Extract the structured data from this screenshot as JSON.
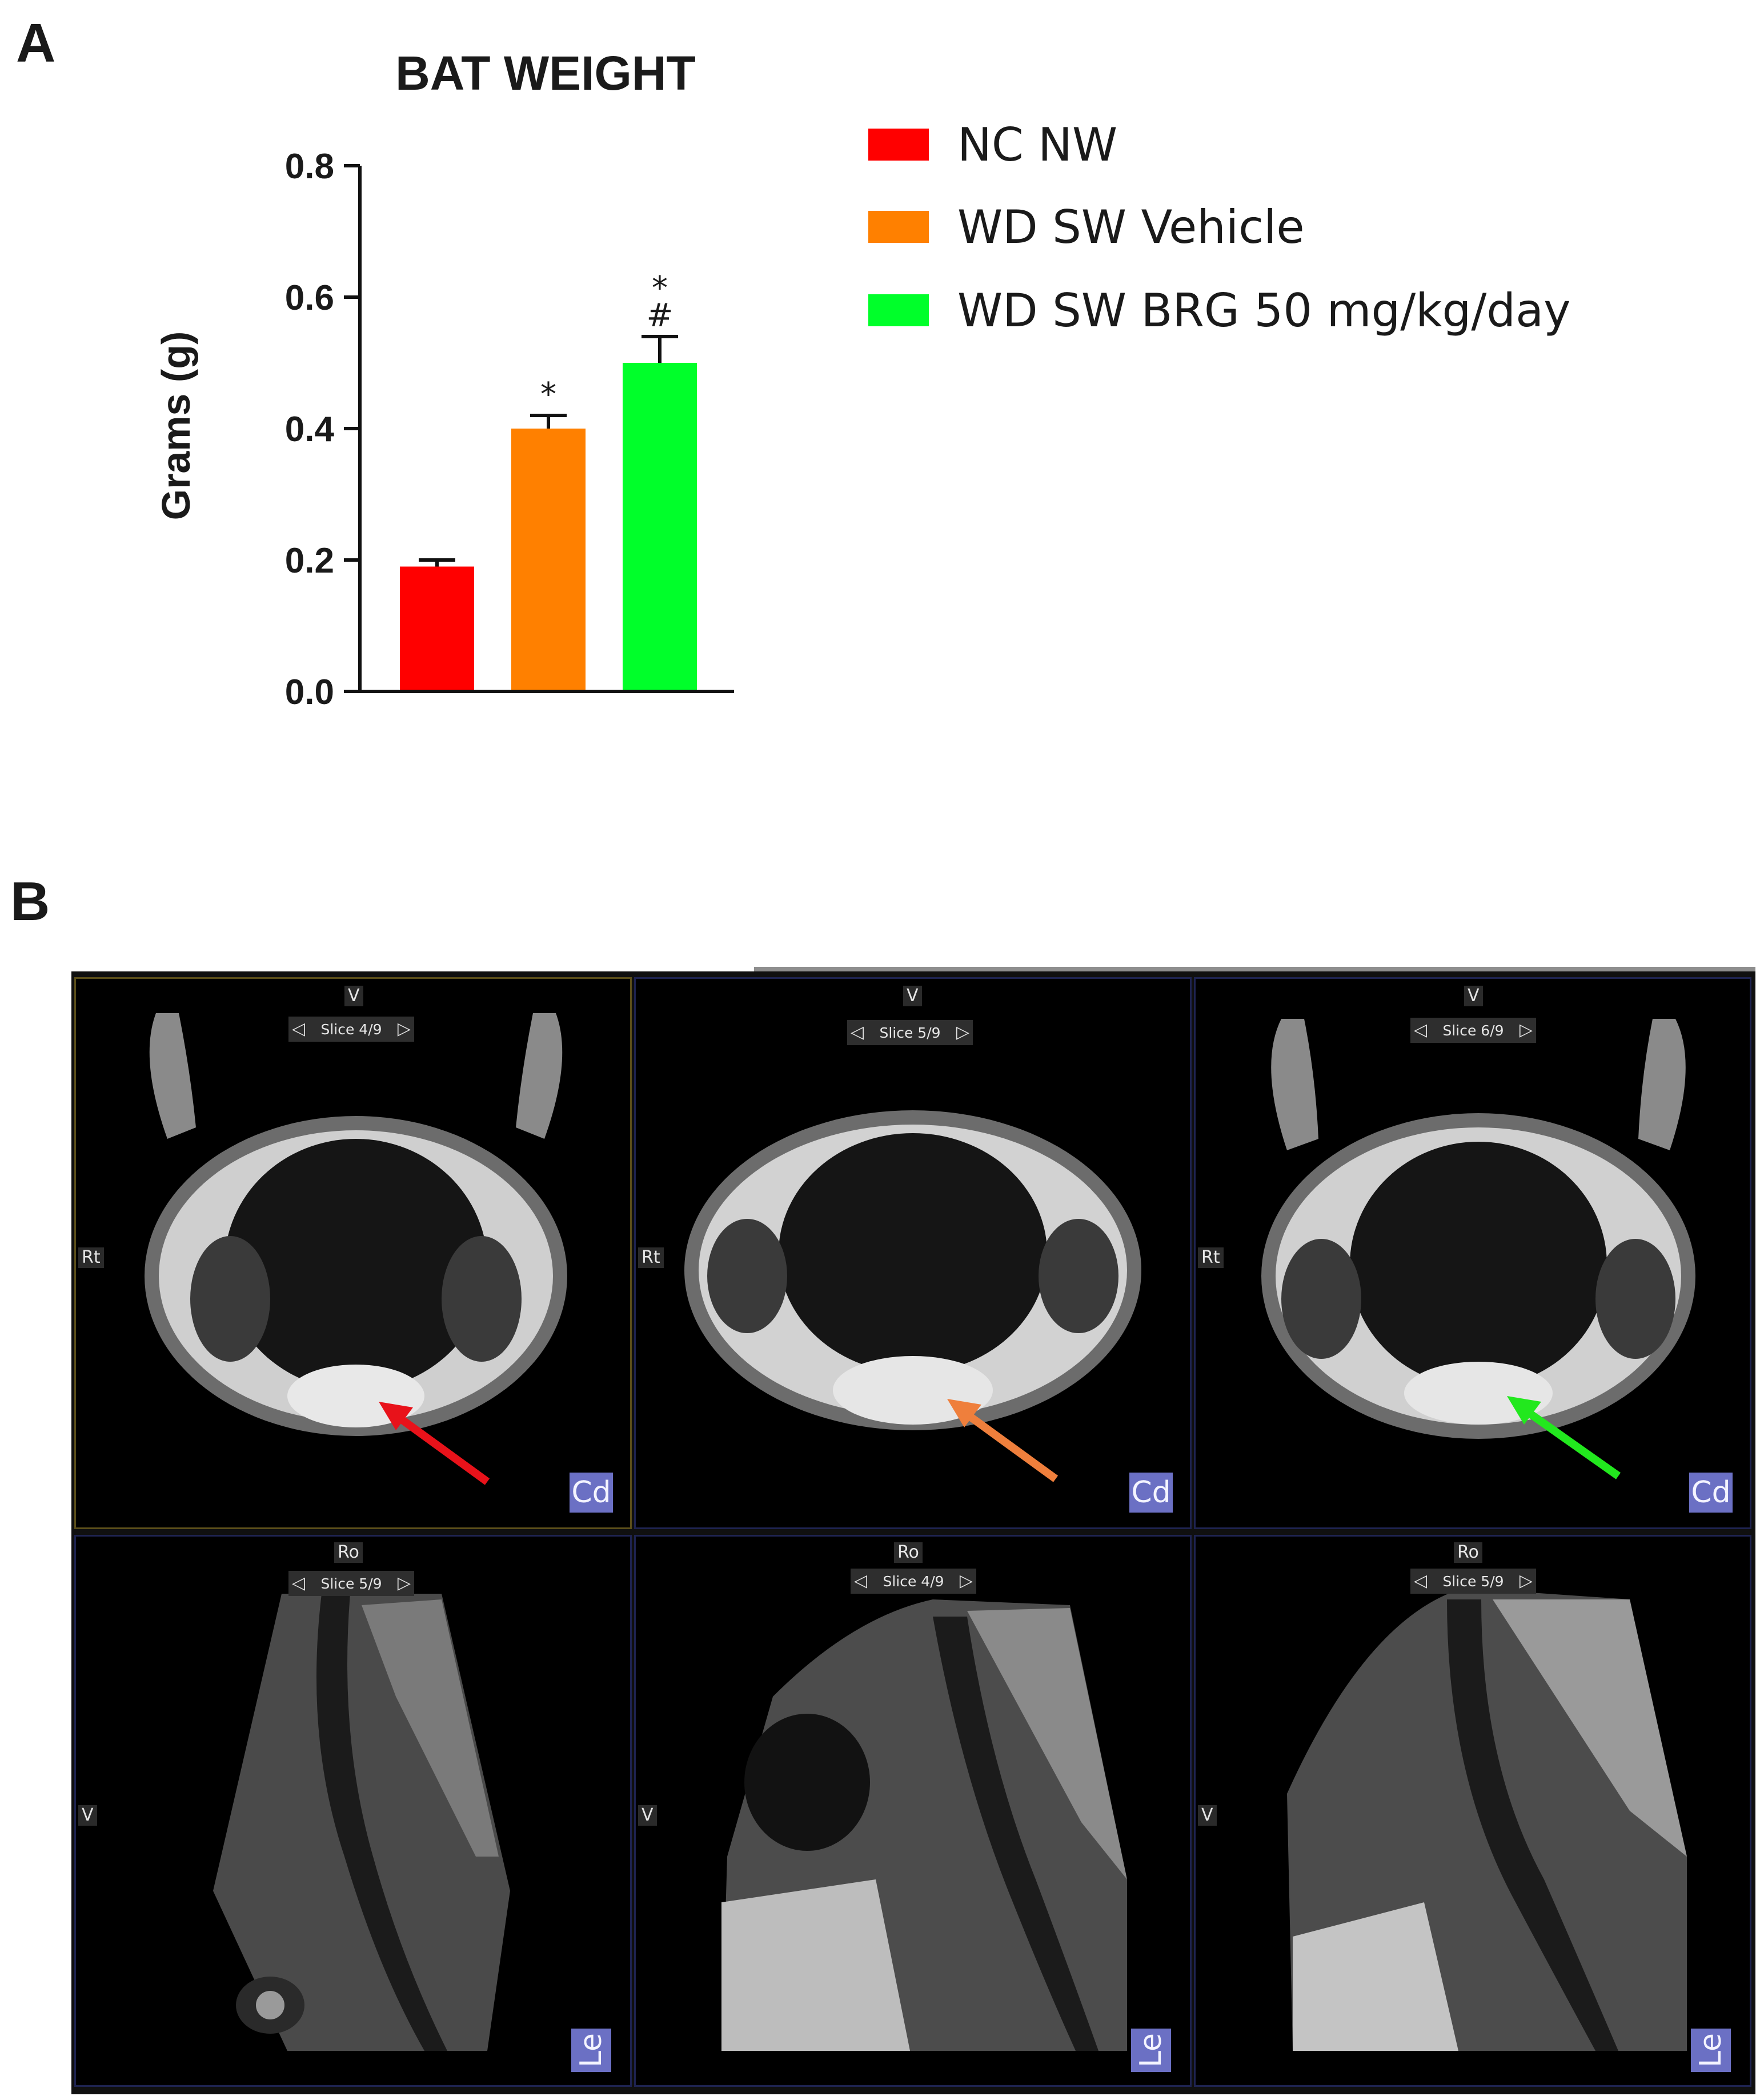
{
  "panel_labels": {
    "a": "A",
    "b": "B"
  },
  "chart_data": {
    "type": "bar",
    "title": "BAT WEIGHT",
    "ylabel": "Grams (g)",
    "xlabel": "",
    "ylim": [
      0,
      0.8
    ],
    "yticks": [
      0.0,
      0.2,
      0.4,
      0.6,
      0.8
    ],
    "ytick_labels": [
      "0.0",
      "0.2",
      "0.4",
      "0.6",
      "0.8"
    ],
    "categories": [
      "NC NW",
      "WD SW Vehicle",
      "WD SW BRG 50 mg/kg/day"
    ],
    "values": [
      0.19,
      0.4,
      0.5
    ],
    "errors": [
      0.01,
      0.02,
      0.04
    ],
    "colors": [
      "#ff0000",
      "#ff8000",
      "#00ff2a"
    ],
    "annotations": [
      null,
      "*",
      "*\n#"
    ],
    "legend": {
      "position": "right",
      "entries": [
        "NC NW",
        "WD SW Vehicle",
        "WD SW BRG 50 mg/kg/day"
      ]
    }
  },
  "mri": {
    "axial": [
      {
        "top": "V",
        "slice": "Slice 4/9",
        "left": "Rt",
        "view": "Cd",
        "arrow_color": "#e8121a"
      },
      {
        "top": "V",
        "slice": "Slice 5/9",
        "left": "Rt",
        "view": "Cd",
        "arrow_color": "#ef7f3c"
      },
      {
        "top": "V",
        "slice": "Slice 6/9",
        "left": "Rt",
        "view": "Cd",
        "arrow_color": "#22e81e"
      }
    ],
    "sagittal": [
      {
        "top": "Ro",
        "slice": "Slice 5/9",
        "left": "V",
        "view": "Le"
      },
      {
        "top": "Ro",
        "slice": "Slice 4/9",
        "left": "V",
        "view": "Le"
      },
      {
        "top": "Ro",
        "slice": "Slice 5/9",
        "left": "V",
        "view": "Le"
      }
    ],
    "slice_arrows": {
      "left": "◁",
      "right": "▷"
    }
  }
}
